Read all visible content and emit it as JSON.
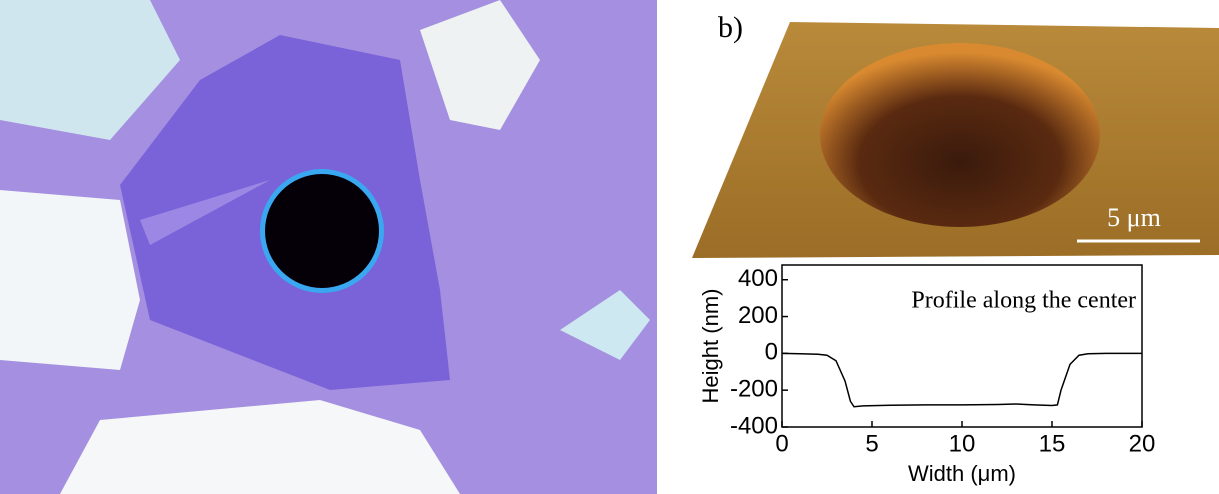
{
  "panel_label": "b)",
  "scale_bar_label": "5 μm",
  "chart_data": {
    "type": "line",
    "annotation": "Profile along the center",
    "x_label": "Width (μm)",
    "y_label": "Height (nm)",
    "x": [
      0,
      1,
      2,
      2.5,
      3,
      3.5,
      3.8,
      4,
      4.5,
      6,
      8,
      10,
      12,
      13,
      14,
      15,
      15.3,
      15.5,
      16,
      16.5,
      17,
      18,
      20
    ],
    "values": [
      0,
      -2,
      -5,
      -10,
      -40,
      -150,
      -260,
      -290,
      -285,
      -282,
      -280,
      -280,
      -278,
      -275,
      -280,
      -283,
      -280,
      -200,
      -60,
      -10,
      -2,
      0,
      0
    ],
    "color": "#000000",
    "xlim": [
      0,
      20
    ],
    "xticks": [
      0,
      5,
      10,
      15,
      20
    ],
    "ylim": [
      -400,
      480
    ],
    "yticks": [
      -400,
      -200,
      0,
      200,
      400
    ]
  }
}
